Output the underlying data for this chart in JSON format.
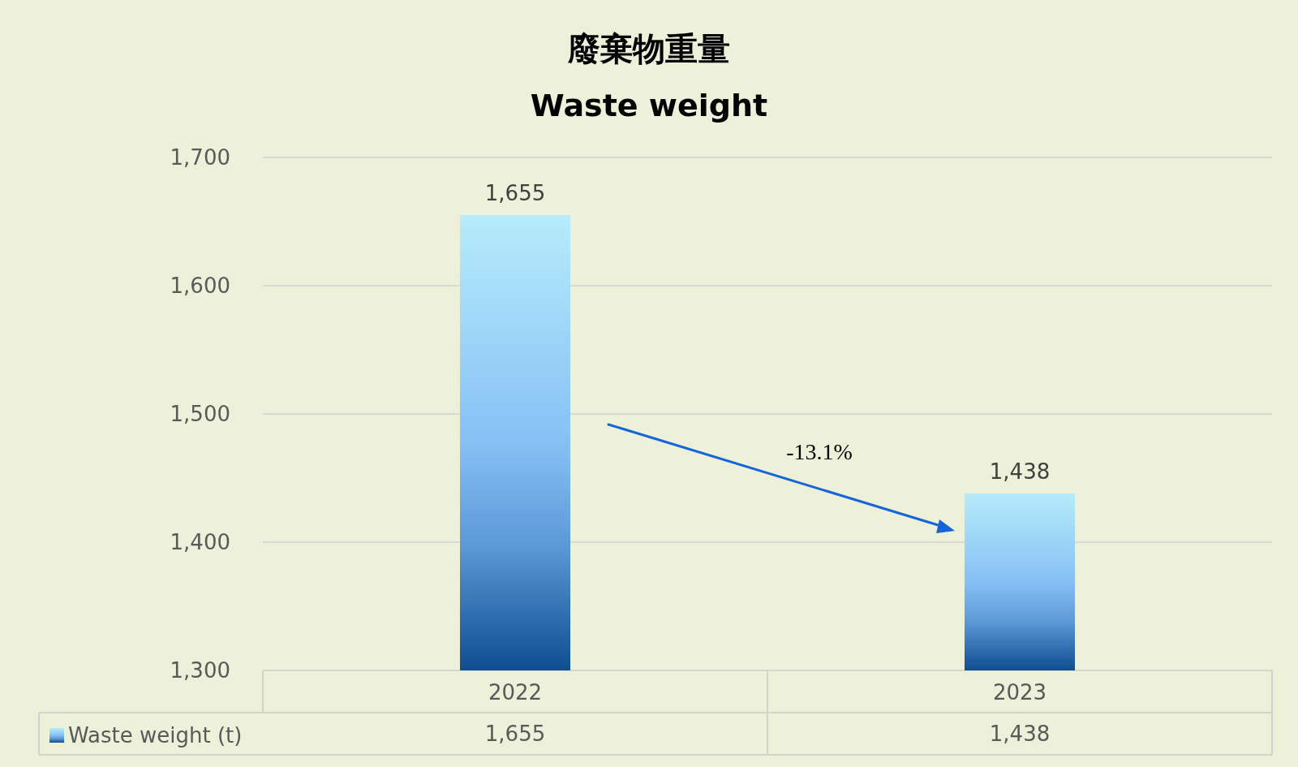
{
  "chart_data": {
    "type": "bar",
    "title": "廢棄物重量",
    "subtitle": "Waste weight",
    "categories": [
      "2022",
      "2023"
    ],
    "series": [
      {
        "name": "Waste weight (t)",
        "color": "#86c0f5",
        "values": [
          1655,
          1438
        ],
        "value_labels": [
          "1,655",
          "1,438"
        ]
      }
    ],
    "ylim": [
      1300,
      1700
    ],
    "yticks": [
      {
        "value": 1300,
        "label": "1,300"
      },
      {
        "value": 1400,
        "label": "1,400"
      },
      {
        "value": 1500,
        "label": "1,500"
      },
      {
        "value": 1600,
        "label": "1,600"
      },
      {
        "value": 1700,
        "label": "1,700"
      }
    ],
    "grid": "y",
    "legend": "bottom left",
    "annotations": [
      "-13.1%"
    ]
  }
}
